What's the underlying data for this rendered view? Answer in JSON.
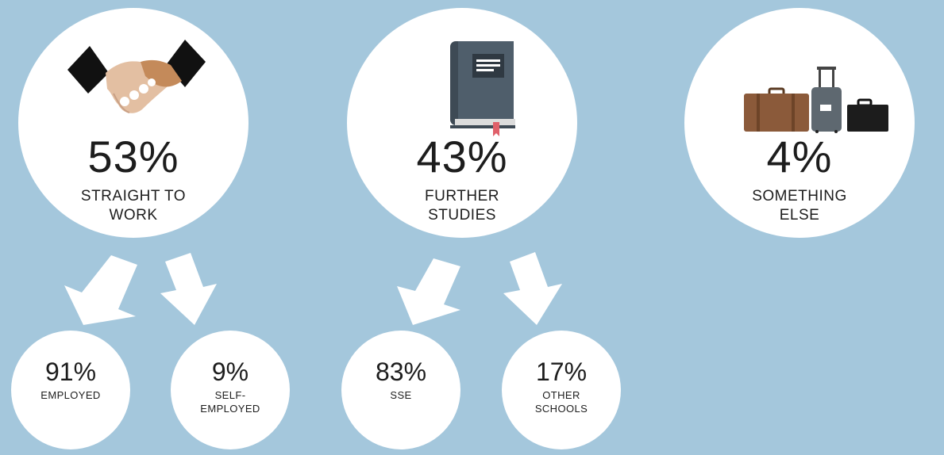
{
  "categories": [
    {
      "id": "work",
      "percent": "53%",
      "label_line1": "STRAIGHT TO",
      "label_line2": "WORK",
      "icon": "handshake-icon"
    },
    {
      "id": "studies",
      "percent": "43%",
      "label_line1": "FURTHER",
      "label_line2": "STUDIES",
      "icon": "book-icon"
    },
    {
      "id": "else",
      "percent": "4%",
      "label_line1": "SOMETHING",
      "label_line2": "ELSE",
      "icon": "luggage-icon"
    }
  ],
  "breakdowns": [
    {
      "id": "employed",
      "percent": "91%",
      "label_line1": "EMPLOYED",
      "label_line2": ""
    },
    {
      "id": "self-employed",
      "percent": "9%",
      "label_line1": "SELF-",
      "label_line2": "EMPLOYED"
    },
    {
      "id": "sse",
      "percent": "83%",
      "label_line1": "SSE",
      "label_line2": ""
    },
    {
      "id": "other-schools",
      "percent": "17%",
      "label_line1": "OTHER",
      "label_line2": "SCHOOLS"
    }
  ],
  "colors": {
    "background": "#a4c7dc",
    "circle": "#ffffff",
    "text": "#1d1d1d",
    "arrow": "#ffffff"
  }
}
